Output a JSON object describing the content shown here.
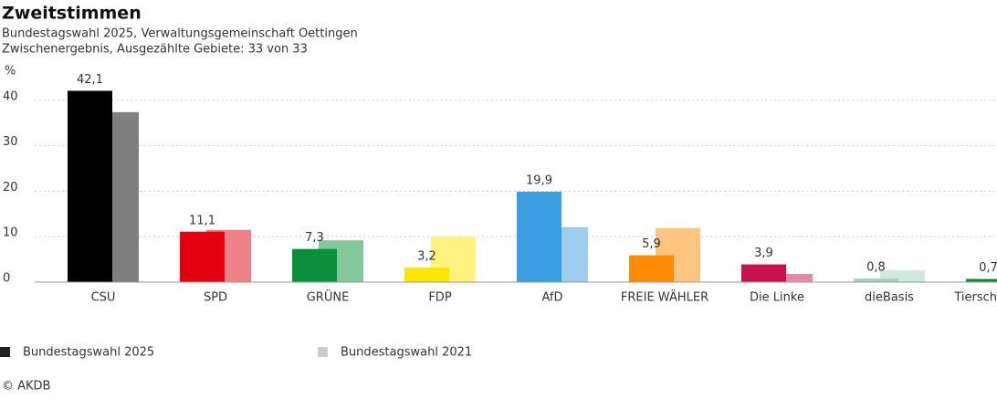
{
  "chart_data": {
    "type": "bar",
    "title": "Zweitstimmen",
    "subtitle": "Bundestagswahl 2025, Verwaltungsgemeinschaft Oettingen",
    "note": "Zwischenergebnis, Ausgezählte Gebiete: 33 von 33",
    "y_label": "%",
    "source": "© AKDB",
    "categories": [
      "CSU",
      "SPD",
      "GRÜNE",
      "FDP",
      "AfD",
      "FREIE WÄHLER",
      "Die Linke",
      "dieBasis",
      "Tiersch"
    ],
    "series": [
      {
        "name": "Bundestagswahl 2025",
        "color": "#222222",
        "bar_colors": [
          "#000000",
          "#e3000f",
          "#0a8f3a",
          "#ffe600",
          "#3a9ee0",
          "#ff8c00",
          "#c8124f",
          "#9fd3c0",
          "#138a2e"
        ],
        "values": [
          42.1,
          11.1,
          7.3,
          3.2,
          19.9,
          5.9,
          3.9,
          0.8,
          0.7
        ],
        "value_labels": [
          "42,1",
          "11,1",
          "7,3",
          "3,2",
          "19,9",
          "5,9",
          "3,9",
          "0,8",
          "0,7"
        ]
      },
      {
        "name": "Bundestagswahl 2021",
        "color": "#cccccc",
        "bar_colors": [
          "#7f7f7f",
          "#f08088",
          "#84c79d",
          "#fff27f",
          "#9ecdf0",
          "#ffc580",
          "#e38aa7",
          "#cfe9df",
          "#89c496"
        ],
        "values": [
          37.4,
          11.5,
          9.2,
          10.0,
          12.1,
          11.9,
          1.8,
          2.6,
          null
        ]
      }
    ],
    "ylim": [
      0,
      44
    ],
    "yticks": [
      0,
      10,
      20,
      30,
      40
    ],
    "grid": true
  }
}
